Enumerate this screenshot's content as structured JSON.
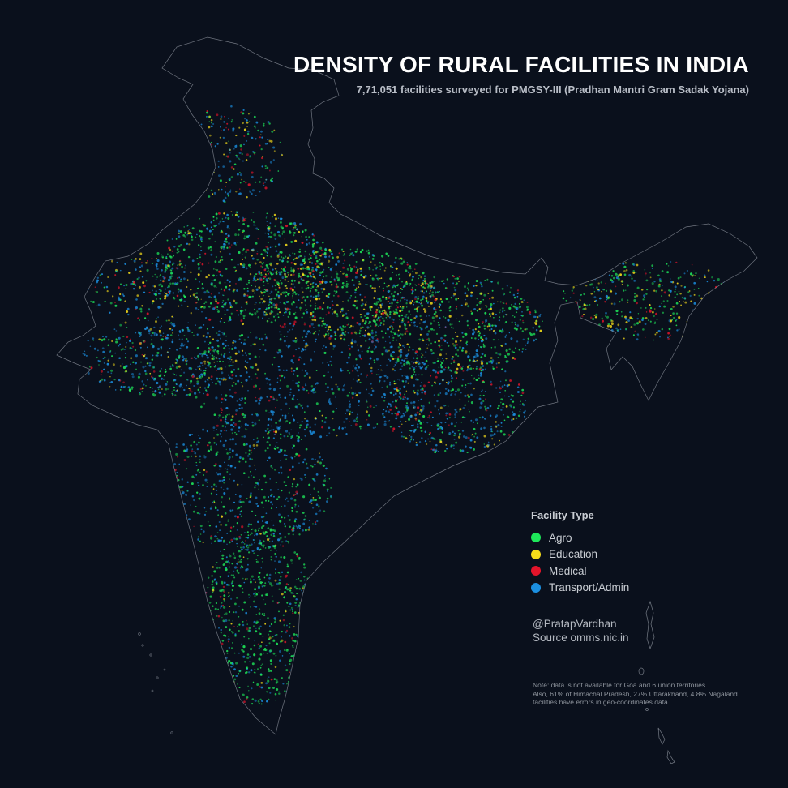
{
  "header": {
    "title": "DENSITY OF RURAL FACILITIES IN INDIA",
    "subtitle": "7,71,051 facilities surveyed for PMGSY-III (Pradhan Mantri Gram Sadak Yojana)"
  },
  "legend": {
    "title": "Facility Type",
    "items": [
      {
        "label": "Agro",
        "color": "#1ee85a"
      },
      {
        "label": "Education",
        "color": "#f5dc1a"
      },
      {
        "label": "Medical",
        "color": "#e3142a"
      },
      {
        "label": "Transport/Admin",
        "color": "#1b8fe0"
      }
    ]
  },
  "credits": {
    "author": "@PratapVardhan",
    "source": "Source omms.nic.in"
  },
  "note": {
    "line1": "Note: data is not available for Goa and 6 union territories.",
    "line2": "Also, 61% of Himachal Pradesh, 27% Uttarakhand, 4.8% Nagaland",
    "line3": "facilities have errors in geo-coordinates data"
  },
  "map": {
    "background": "#0a101c",
    "outline_color": "#9aa0aa"
  }
}
